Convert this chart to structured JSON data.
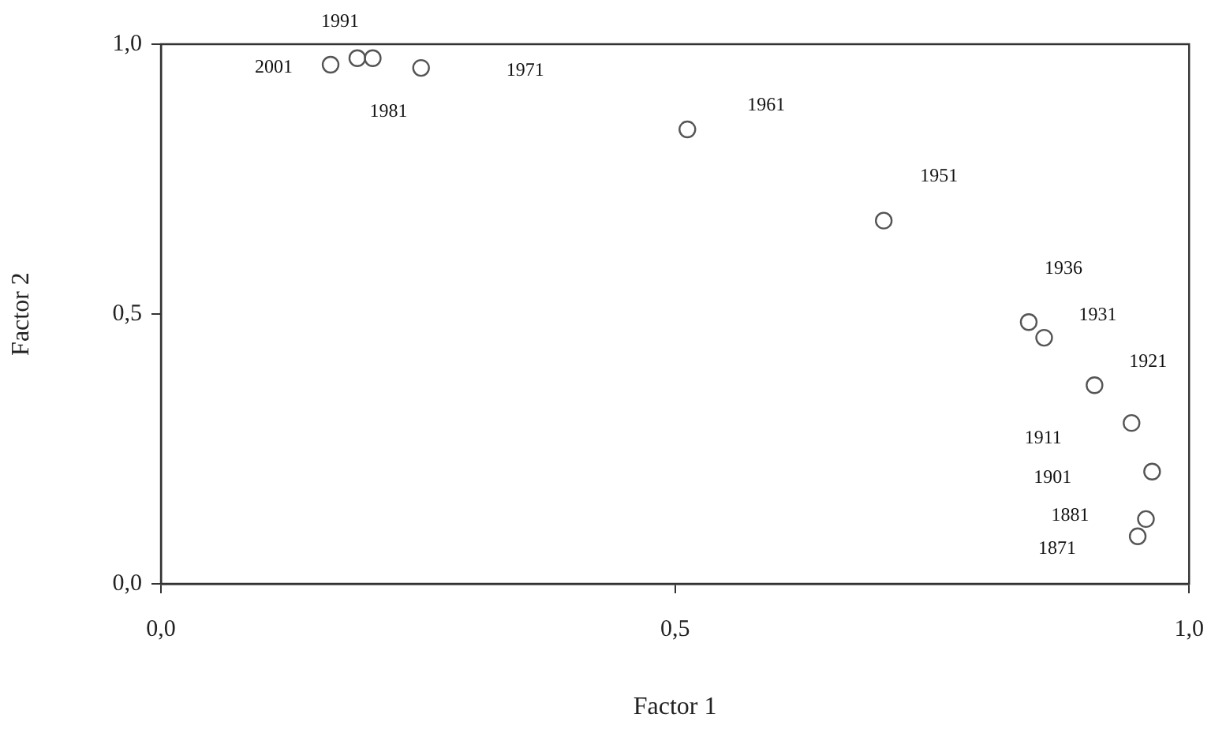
{
  "chart_data": {
    "type": "scatter",
    "xlabel": "Factor 1",
    "ylabel": "Factor 2",
    "x": [
      0.165,
      0.191,
      0.206,
      0.253,
      0.512,
      0.703,
      0.844,
      0.859,
      0.908,
      0.944,
      0.964,
      0.958,
      0.95
    ],
    "values": [
      0.962,
      0.974,
      0.974,
      0.956,
      0.842,
      0.673,
      0.485,
      0.456,
      0.368,
      0.298,
      0.208,
      0.12,
      0.088
    ],
    "color": "#555555",
    "marker": "circle",
    "grid": false,
    "xlim": [
      0,
      1
    ],
    "ylim": [
      0,
      1
    ],
    "xticks": [
      {
        "value": 0,
        "label": "0,0"
      },
      {
        "value": 0.5,
        "label": "0,5"
      },
      {
        "value": 1,
        "label": "1,0"
      }
    ],
    "yticks": [
      {
        "value": 0,
        "label": "0,0"
      },
      {
        "value": 0.5,
        "label": "0,5"
      },
      {
        "value": 1,
        "label": "1,0"
      }
    ],
    "annotations": [
      "2001",
      "1991",
      "1981",
      "1971",
      "1961",
      "1951",
      "1936",
      "1931",
      "1921",
      "1911",
      "1901",
      "1881",
      "1871"
    ]
  }
}
